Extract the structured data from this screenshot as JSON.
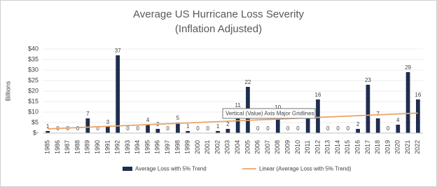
{
  "chart_data": {
    "type": "bar",
    "title": "Average US Hurricane Loss Severity",
    "subtitle": "(Inflation Adjusted)",
    "y_label": "Billions",
    "categories": [
      "1985",
      "1986",
      "1987",
      "1988",
      "1989",
      "1990",
      "1991",
      "1992",
      "1993",
      "1994",
      "1995",
      "1996",
      "1997",
      "1998",
      "1999",
      "2000",
      "2001",
      "2002",
      "2003",
      "2004",
      "2005",
      "2006",
      "2007",
      "2008",
      "2009",
      "2010",
      "2011",
      "2012",
      "2013",
      "2014",
      "2015",
      "2016",
      "2017",
      "2018",
      "2019",
      "2020",
      "2021",
      "2022"
    ],
    "series": [
      {
        "name": "Average Loss with 5% Trend",
        "color": "#1f2d4e",
        "values": [
          1,
          0,
          0,
          0,
          7,
          0,
          3,
          37,
          0,
          0,
          4,
          2,
          0,
          5,
          1,
          0,
          0,
          1,
          2,
          11,
          22,
          0,
          0,
          10,
          0,
          0,
          7,
          16,
          0,
          0,
          0,
          2,
          23,
          7,
          0,
          4,
          29,
          16
        ]
      }
    ],
    "trendline": {
      "name": "Linear (Average Loss with 5% Trend)",
      "color": "#e8a469",
      "categories": [
        "1985",
        "2022"
      ],
      "values": [
        2,
        9.5
      ]
    },
    "ylim": [
      0,
      40
    ],
    "yticks": [
      {
        "value": 0,
        "label": "$-"
      },
      {
        "value": 5,
        "label": "$5"
      },
      {
        "value": 10,
        "label": "$10"
      },
      {
        "value": 15,
        "label": "$15"
      },
      {
        "value": 20,
        "label": "$20"
      },
      {
        "value": 25,
        "label": "$25"
      },
      {
        "value": 30,
        "label": "$30"
      },
      {
        "value": 35,
        "label": "$35"
      },
      {
        "value": 40,
        "label": "$40"
      }
    ],
    "grid": true,
    "annotation": "Vertical (Value) Axis Major Gridlines"
  }
}
